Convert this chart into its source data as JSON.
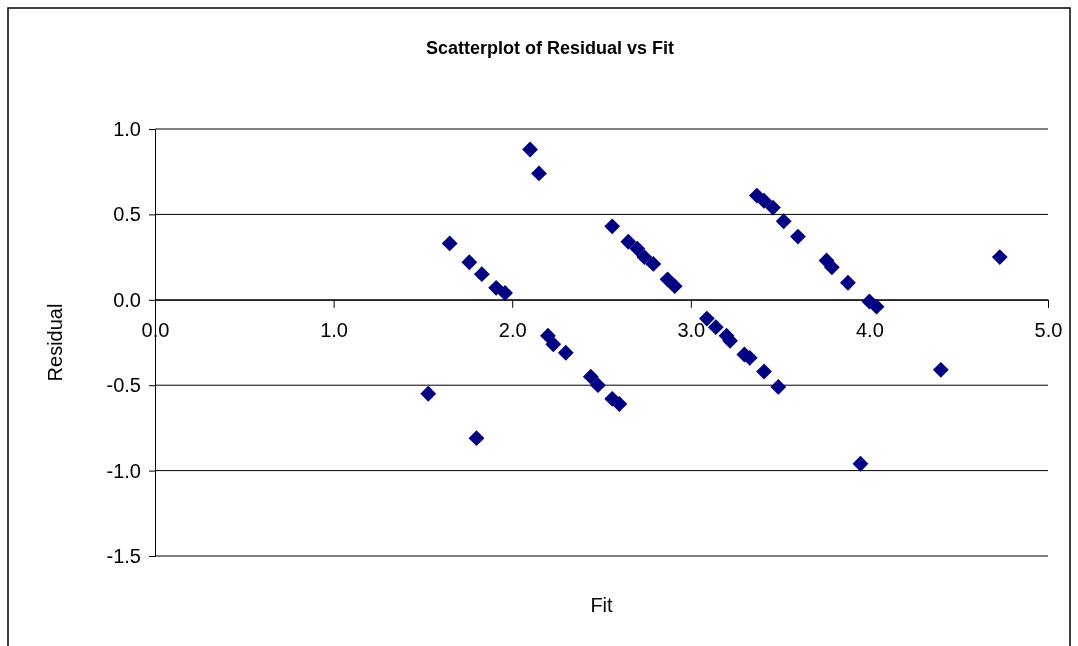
{
  "chart_data": {
    "type": "scatter",
    "title": "Scatterplot of Residual vs Fit",
    "xlabel": "Fit",
    "ylabel": "Residual",
    "marker": "diamond",
    "grid": "y",
    "xlim": [
      0,
      5
    ],
    "xticks": [
      {
        "value": 0,
        "label": "0.0"
      },
      {
        "value": 1,
        "label": "1.0"
      },
      {
        "value": 2,
        "label": "2.0"
      },
      {
        "value": 3,
        "label": "3.0"
      },
      {
        "value": 4,
        "label": "4.0"
      },
      {
        "value": 5,
        "label": "5.0"
      }
    ],
    "ylim": [
      -1.5,
      1
    ],
    "yticks": [
      {
        "value": -1.5,
        "label": "-1.5"
      },
      {
        "value": -1,
        "label": "-1.0"
      },
      {
        "value": -0.5,
        "label": "-0.5"
      },
      {
        "value": 0,
        "label": "0.0"
      },
      {
        "value": 0.5,
        "label": "0.5"
      },
      {
        "value": 1,
        "label": "1.0"
      }
    ],
    "series": [
      {
        "color": "#000080",
        "x": [
          1.53,
          1.65,
          1.76,
          1.8,
          1.83,
          1.91,
          1.96,
          2.1,
          2.15,
          2.2,
          2.23,
          2.3,
          2.44,
          2.48,
          2.56,
          2.6,
          2.56,
          2.65,
          2.7,
          2.74,
          2.79,
          2.87,
          2.91,
          3.09,
          3.14,
          3.2,
          3.22,
          3.3,
          3.33,
          3.41,
          3.49,
          3.37,
          3.41,
          3.46,
          3.52,
          3.6,
          3.76,
          3.79,
          3.88,
          4.0,
          4.04,
          3.95,
          4.4,
          4.73
        ],
        "values": [
          -0.55,
          0.33,
          0.22,
          -0.81,
          0.15,
          0.07,
          0.04,
          0.88,
          0.74,
          -0.21,
          -0.26,
          -0.31,
          -0.45,
          -0.5,
          -0.58,
          -0.61,
          0.43,
          0.34,
          0.3,
          0.25,
          0.21,
          0.12,
          0.08,
          -0.11,
          -0.16,
          -0.21,
          -0.24,
          -0.32,
          -0.34,
          -0.42,
          -0.51,
          0.61,
          0.58,
          0.54,
          0.46,
          0.37,
          0.23,
          0.19,
          0.1,
          -0.01,
          -0.04,
          -0.96,
          -0.41,
          0.25
        ]
      }
    ]
  }
}
